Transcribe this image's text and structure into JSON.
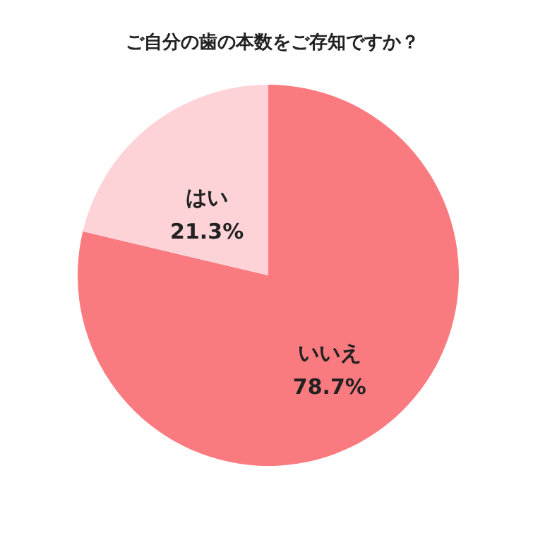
{
  "chart_data": {
    "type": "pie",
    "title": "ご自分の歯の本数をご存知ですか？",
    "categories": [
      "いいえ",
      "はい"
    ],
    "values": [
      78.7,
      21.3
    ],
    "colors": [
      "#fa7b7f",
      "#fdd3d8"
    ],
    "value_labels": [
      "78.7%",
      "21.3%"
    ]
  }
}
